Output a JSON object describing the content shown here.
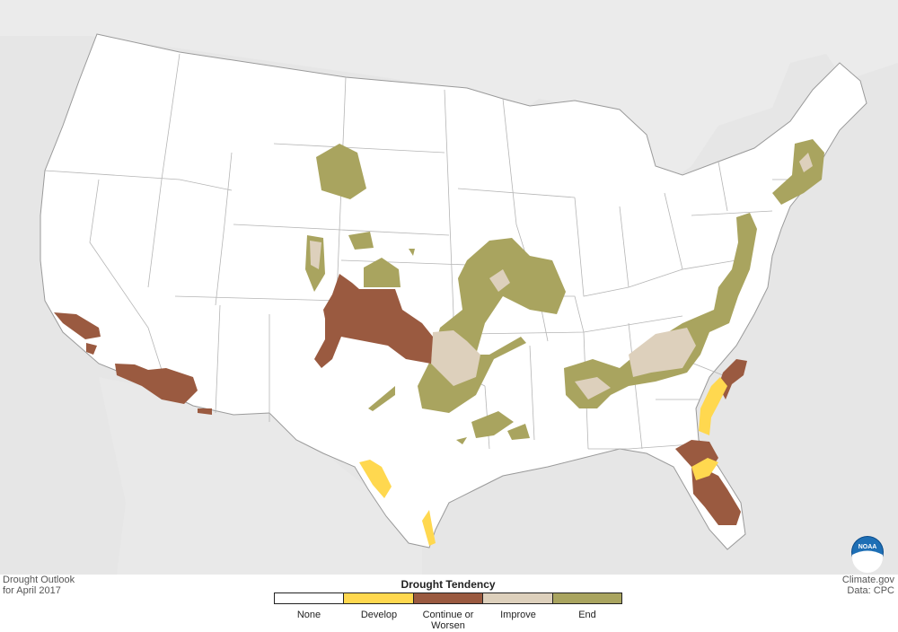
{
  "map": {
    "title_line1": "Drought Outlook",
    "title_line2": "for April 2017",
    "credit_line1": "Climate.gov",
    "credit_line2": "Data: CPC",
    "logo_text": "NOAA"
  },
  "legend": {
    "title": "Drought Tendency",
    "items": [
      {
        "label": "None",
        "color": "#ffffff"
      },
      {
        "label": "Develop",
        "color": "#ffd84f"
      },
      {
        "label": "Continue or",
        "label2": "Worsen",
        "color": "#9a5a40"
      },
      {
        "label": "Improve",
        "color": "#ddd0bc"
      },
      {
        "label": "End",
        "color": "#a9a45f"
      }
    ]
  },
  "colors": {
    "land": "#ffffff",
    "background": "#e6e6e6",
    "state_border": "#999999"
  }
}
